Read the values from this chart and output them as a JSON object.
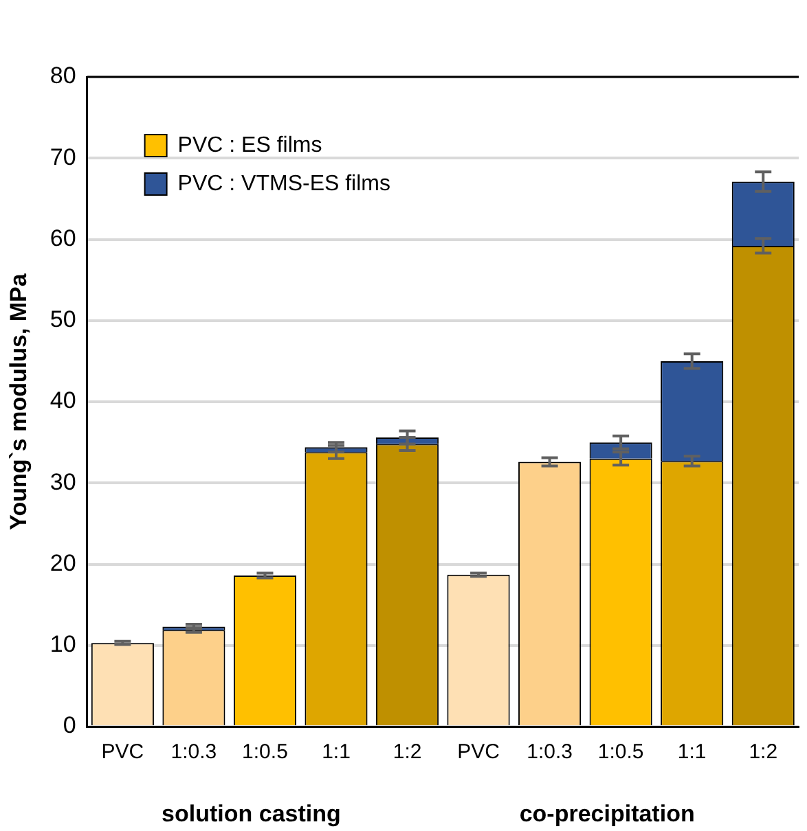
{
  "chart_data": {
    "type": "bar",
    "stacked": true,
    "categories": [
      "PVC",
      "1:0.3",
      "1:0.5",
      "1:1",
      "1:2",
      "PVC",
      "1:0.3",
      "1:0.5",
      "1:1",
      "1:2"
    ],
    "ylabel": "Young`s modulus, MPa",
    "ylim": [
      0,
      80
    ],
    "yticks": [
      0,
      10,
      20,
      30,
      40,
      50,
      60,
      70,
      80
    ],
    "grid": "y",
    "legend": "top left",
    "annotations": [
      "solution casting",
      "co-precipitation"
    ],
    "series": [
      {
        "name": "PVC : ES films",
        "color": "#ffc000",
        "colors": [
          "#fee0b4",
          "#fdd08a",
          "#ffc000",
          "#dea600",
          "#bf9000",
          "#fee0b4",
          "#fdd08a",
          "#ffc000",
          "#dea600",
          "#bf9000"
        ],
        "values": [
          10.3,
          11.9,
          18.6,
          33.8,
          34.8,
          18.7,
          32.6,
          33.0,
          32.7,
          59.2
        ],
        "errors": [
          0.2,
          0.3,
          0.3,
          0.8,
          0.8,
          0.2,
          0.5,
          0.8,
          0.6,
          0.9
        ]
      },
      {
        "name": "PVC : VTMS-ES films",
        "color": "#2f5597",
        "values": [
          null,
          0.4,
          null,
          0.6,
          0.8,
          null,
          null,
          2.0,
          12.3,
          7.9
        ],
        "errors": [
          null,
          0.3,
          null,
          0.6,
          0.8,
          null,
          null,
          0.8,
          0.9,
          1.2
        ]
      }
    ]
  }
}
